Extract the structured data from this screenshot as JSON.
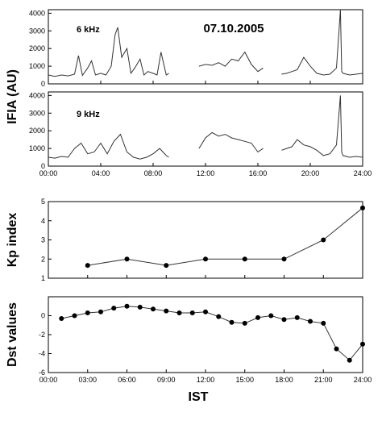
{
  "figure": {
    "date": "07.10.2005",
    "ifia_ylabel": "IFIA (AU)",
    "bottom_xlabel": "IST"
  },
  "chart_data": [
    {
      "type": "line",
      "panel_label": "6 kHz",
      "ylabel": "IFIA (AU)",
      "xlim": [
        0,
        24
      ],
      "ylim": [
        0,
        4200
      ],
      "yticks": [
        "0",
        "1000",
        "2000",
        "3000",
        "4000"
      ],
      "xticks": [
        "00:00",
        "04:00",
        "08:00",
        "12:00",
        "16:00",
        "20:00",
        "24:00"
      ],
      "show_xtick_labels": false,
      "segments": [
        {
          "x": [
            0.0,
            0.5,
            1.0,
            1.5,
            2.0,
            2.3,
            2.6,
            3.0,
            3.3,
            3.6,
            4.0,
            4.4,
            4.8,
            5.1,
            5.3,
            5.6,
            6.0,
            6.3,
            6.6,
            7.0,
            7.3,
            7.6,
            8.0,
            8.3,
            8.6,
            9.0,
            9.2
          ],
          "y": [
            500,
            420,
            500,
            450,
            550,
            1600,
            480,
            900,
            1300,
            500,
            600,
            500,
            1000,
            2800,
            3200,
            1500,
            2000,
            600,
            900,
            1400,
            500,
            700,
            600,
            500,
            1800,
            500,
            600
          ]
        },
        {
          "x": [
            11.5,
            12.0,
            12.5,
            13.0,
            13.5,
            14.0,
            14.5,
            15.0,
            15.5,
            16.0,
            16.4
          ],
          "y": [
            1000,
            1100,
            1050,
            1200,
            1000,
            1400,
            1300,
            1800,
            1100,
            700,
            900
          ]
        },
        {
          "x": [
            17.8,
            18.2,
            18.6,
            19.0,
            19.5,
            20.0,
            20.5,
            21.0,
            21.5,
            22.0,
            22.3,
            22.4,
            22.5,
            23.0,
            23.5,
            24.0
          ],
          "y": [
            550,
            600,
            700,
            800,
            1500,
            1000,
            600,
            500,
            550,
            900,
            4200,
            700,
            600,
            500,
            550,
            600
          ]
        }
      ]
    },
    {
      "type": "line",
      "panel_label": "9 kHz",
      "ylabel": "IFIA (AU)",
      "xlim": [
        0,
        24
      ],
      "ylim": [
        0,
        4200
      ],
      "yticks": [
        "0",
        "1000",
        "2000",
        "3000",
        "4000"
      ],
      "xticks": [
        "00:00",
        "04:00",
        "08:00",
        "12:00",
        "16:00",
        "20:00",
        "24:00"
      ],
      "show_xtick_labels": true,
      "segments": [
        {
          "x": [
            0.0,
            0.5,
            1.0,
            1.5,
            2.0,
            2.5,
            3.0,
            3.5,
            4.0,
            4.5,
            5.0,
            5.5,
            6.0,
            6.5,
            7.0,
            7.5,
            8.0,
            8.5,
            9.0,
            9.2
          ],
          "y": [
            500,
            450,
            550,
            500,
            1000,
            1300,
            700,
            800,
            1300,
            700,
            1400,
            1800,
            800,
            500,
            400,
            500,
            700,
            1000,
            600,
            500
          ]
        },
        {
          "x": [
            11.5,
            12.0,
            12.5,
            13.0,
            13.5,
            14.0,
            14.5,
            15.0,
            15.5,
            16.0,
            16.4
          ],
          "y": [
            1000,
            1600,
            1900,
            1700,
            1800,
            1600,
            1500,
            1400,
            1300,
            800,
            1000
          ]
        },
        {
          "x": [
            17.8,
            18.2,
            18.6,
            19.0,
            19.5,
            20.0,
            20.5,
            21.0,
            21.5,
            22.0,
            22.3,
            22.4,
            22.5,
            23.0,
            23.5,
            24.0
          ],
          "y": [
            900,
            1000,
            1100,
            1500,
            1200,
            1100,
            900,
            600,
            700,
            1200,
            4000,
            800,
            600,
            500,
            550,
            500
          ]
        }
      ]
    },
    {
      "type": "line",
      "ylabel": "Kp index",
      "xlim": [
        0,
        24
      ],
      "ylim": [
        1,
        5
      ],
      "yticks": [
        "1",
        "2",
        "3",
        "4",
        "5"
      ],
      "xticks": [
        "00:00",
        "03:00",
        "06:00",
        "09:00",
        "12:00",
        "15:00",
        "18:00",
        "21:00",
        "24:00"
      ],
      "show_xtick_labels": false,
      "markers": true,
      "x": [
        3,
        6,
        9,
        12,
        15,
        18,
        21,
        24
      ],
      "y": [
        1.67,
        2.0,
        1.67,
        2.0,
        2.0,
        2.0,
        3.0,
        4.67
      ]
    },
    {
      "type": "line",
      "ylabel": "Dst values",
      "xlabel": "IST",
      "xlim": [
        0,
        24
      ],
      "ylim": [
        -6,
        2
      ],
      "yticks": [
        "-6",
        "-4",
        "-2",
        "0"
      ],
      "xticks": [
        "00:00",
        "03:00",
        "06:00",
        "09:00",
        "12:00",
        "15:00",
        "18:00",
        "21:00",
        "24:00"
      ],
      "show_xtick_labels": true,
      "markers": true,
      "x": [
        1,
        2,
        3,
        4,
        5,
        6,
        7,
        8,
        9,
        10,
        11,
        12,
        13,
        14,
        15,
        16,
        17,
        18,
        19,
        20,
        21,
        22,
        23,
        24
      ],
      "y": [
        -0.3,
        0.0,
        0.3,
        0.4,
        0.8,
        1.0,
        0.9,
        0.7,
        0.5,
        0.3,
        0.3,
        0.4,
        -0.1,
        -0.7,
        -0.8,
        -0.2,
        0.0,
        -0.4,
        -0.2,
        -0.6,
        -0.8,
        -3.5,
        -4.7,
        -3.0
      ]
    }
  ]
}
